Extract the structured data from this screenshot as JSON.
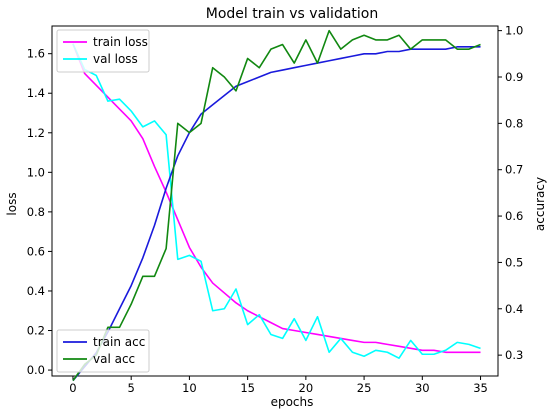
{
  "chart_data": {
    "type": "line",
    "title": "Model train vs validation",
    "xlabel": "epochs",
    "ylabel_left": "loss",
    "ylabel_right": "accuracy",
    "xlim": [
      -1.8,
      36.5
    ],
    "ylim_left": [
      -0.03,
      1.74
    ],
    "ylim_right": [
      0.255,
      1.01
    ],
    "x_ticks": [
      0,
      5,
      10,
      15,
      20,
      25,
      30,
      35
    ],
    "y_ticks_left": [
      0.0,
      0.2,
      0.4,
      0.6,
      0.8,
      1.0,
      1.2,
      1.4,
      1.6
    ],
    "y_ticks_left_labels": [
      "0.0",
      "0.2",
      "0.4",
      "0.6",
      "0.8",
      "1.0",
      "1.2",
      "1.4",
      "1.6"
    ],
    "y_ticks_right": [
      0.3,
      0.4,
      0.5,
      0.6,
      0.7,
      0.8,
      0.9,
      1.0
    ],
    "y_ticks_right_labels": [
      "0.3",
      "0.4",
      "0.5",
      "0.6",
      "0.7",
      "0.8",
      "0.9",
      "1.0"
    ],
    "grid": false,
    "legend_loss_position": "upper-left",
    "legend_acc_position": "lower-left",
    "x": [
      0,
      1,
      2,
      3,
      4,
      5,
      6,
      7,
      8,
      9,
      10,
      11,
      12,
      13,
      14,
      15,
      16,
      17,
      18,
      19,
      20,
      21,
      22,
      23,
      24,
      25,
      26,
      27,
      28,
      29,
      30,
      31,
      32,
      33,
      34,
      35
    ],
    "series_loss": [
      {
        "name": "train loss",
        "color": "#ff00ff",
        "values": [
          1.65,
          1.5,
          1.44,
          1.38,
          1.32,
          1.26,
          1.17,
          1.03,
          0.9,
          0.76,
          0.62,
          0.52,
          0.44,
          0.39,
          0.34,
          0.3,
          0.27,
          0.24,
          0.21,
          0.2,
          0.19,
          0.18,
          0.17,
          0.16,
          0.15,
          0.14,
          0.14,
          0.13,
          0.12,
          0.11,
          0.1,
          0.1,
          0.09,
          0.09,
          0.09,
          0.09
        ]
      },
      {
        "name": "val loss",
        "color": "#00ffff",
        "values": [
          1.65,
          1.52,
          1.49,
          1.36,
          1.37,
          1.31,
          1.23,
          1.26,
          1.19,
          0.56,
          0.58,
          0.55,
          0.3,
          0.31,
          0.41,
          0.23,
          0.28,
          0.18,
          0.16,
          0.26,
          0.15,
          0.27,
          0.09,
          0.16,
          0.09,
          0.07,
          0.1,
          0.09,
          0.06,
          0.15,
          0.08,
          0.08,
          0.1,
          0.14,
          0.13,
          0.11
        ]
      }
    ],
    "series_acc": [
      {
        "name": "train acc",
        "color": "#1a1adc",
        "values": [
          0.245,
          0.275,
          0.305,
          0.35,
          0.4,
          0.45,
          0.51,
          0.58,
          0.66,
          0.73,
          0.78,
          0.82,
          0.84,
          0.86,
          0.88,
          0.89,
          0.9,
          0.91,
          0.915,
          0.92,
          0.925,
          0.93,
          0.935,
          0.94,
          0.945,
          0.95,
          0.95,
          0.955,
          0.955,
          0.96,
          0.96,
          0.96,
          0.96,
          0.965,
          0.965,
          0.965
        ]
      },
      {
        "name": "val acc",
        "color": "#118811",
        "values": [
          0.245,
          0.28,
          0.3,
          0.36,
          0.36,
          0.41,
          0.47,
          0.47,
          0.53,
          0.8,
          0.78,
          0.8,
          0.92,
          0.9,
          0.87,
          0.94,
          0.92,
          0.96,
          0.97,
          0.93,
          0.98,
          0.93,
          1.0,
          0.96,
          0.98,
          0.99,
          0.98,
          0.98,
          0.99,
          0.96,
          0.98,
          0.98,
          0.98,
          0.96,
          0.96,
          0.97
        ]
      }
    ]
  }
}
